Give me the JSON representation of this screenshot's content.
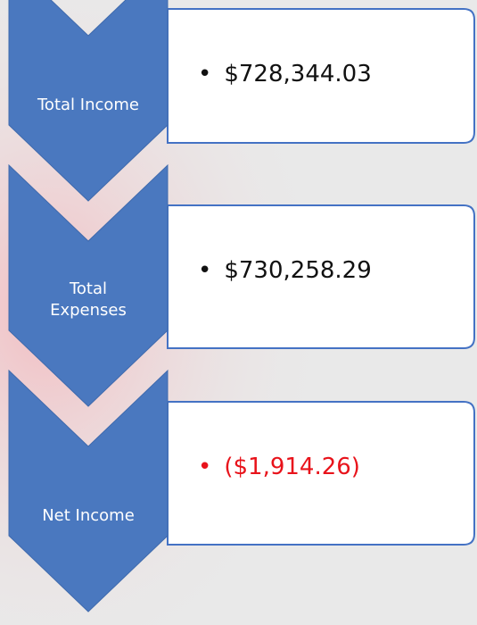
{
  "items": [
    {
      "label": [
        "Total Income"
      ],
      "value": "$728,344.03",
      "negative": false
    },
    {
      "label": [
        "Total",
        "Expenses"
      ],
      "value": "$730,258.29",
      "negative": false
    },
    {
      "label": [
        "Net Income"
      ],
      "value": "($1,914.26)",
      "negative": true
    }
  ]
}
